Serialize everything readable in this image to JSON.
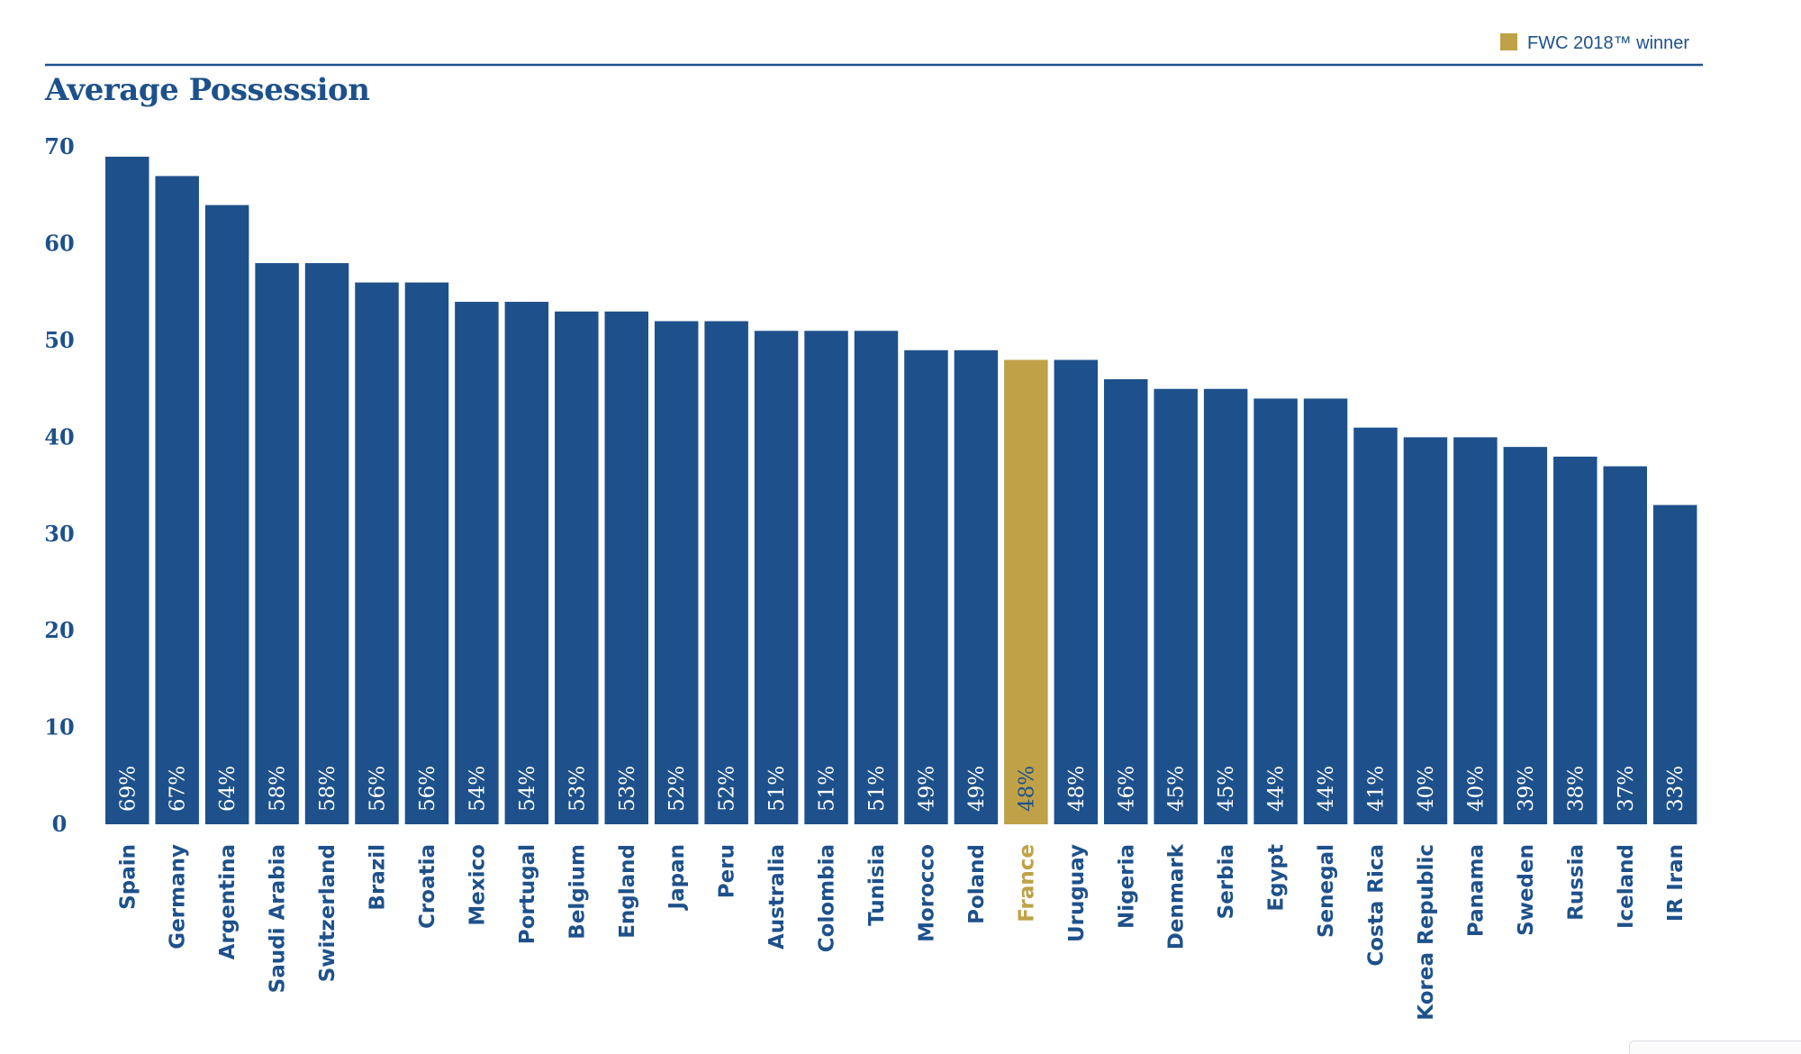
{
  "legend": {
    "label": "FWC 2018™ winner"
  },
  "colors": {
    "bar": "#1e518b",
    "highlight": "#bfa147",
    "text": "#1e518b",
    "rule": "#1e518b",
    "data_label": "#ffffff"
  },
  "chart_data": {
    "type": "bar",
    "title": "Average Possession",
    "xlabel": "",
    "ylabel": "",
    "ylim": [
      0,
      70
    ],
    "yticks": [
      0,
      10,
      20,
      30,
      40,
      50,
      60,
      70
    ],
    "grid": false,
    "legend_position": "top-right",
    "highlight_category": "France",
    "categories": [
      "Spain",
      "Germany",
      "Argentina",
      "Saudi Arabia",
      "Switzerland",
      "Brazil",
      "Croatia",
      "Mexico",
      "Portugal",
      "Belgium",
      "England",
      "Japan",
      "Peru",
      "Australia",
      "Colombia",
      "Tunisia",
      "Morocco",
      "Poland",
      "France",
      "Uruguay",
      "Nigeria",
      "Denmark",
      "Serbia",
      "Egypt",
      "Senegal",
      "Costa Rica",
      "Korea Republic",
      "Panama",
      "Sweden",
      "Russia",
      "Iceland",
      "IR Iran"
    ],
    "values": [
      69,
      67,
      64,
      58,
      58,
      56,
      56,
      54,
      54,
      53,
      53,
      52,
      52,
      51,
      51,
      51,
      49,
      49,
      48,
      48,
      46,
      45,
      45,
      44,
      44,
      41,
      40,
      40,
      39,
      38,
      37,
      33
    ],
    "data_labels": [
      "69%",
      "67%",
      "64%",
      "58%",
      "58%",
      "56%",
      "56%",
      "54%",
      "54%",
      "53%",
      "53%",
      "52%",
      "52%",
      "51%",
      "51%",
      "51%",
      "49%",
      "49%",
      "48%",
      "48%",
      "46%",
      "45%",
      "45%",
      "44%",
      "44%",
      "41%",
      "40%",
      "40%",
      "39%",
      "38%",
      "37%",
      "33%"
    ]
  }
}
